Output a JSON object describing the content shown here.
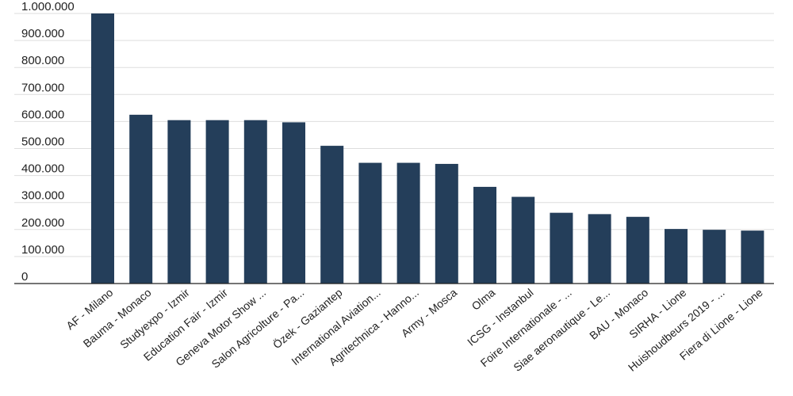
{
  "colors": {
    "bar": "#243e5a",
    "grid": "#dddddd",
    "text": "#222222"
  },
  "chart_data": {
    "type": "bar",
    "title": "",
    "xlabel": "",
    "ylabel": "",
    "ylim": [
      0,
      1000000
    ],
    "y_ticks": [
      {
        "value": 0,
        "label": "0"
      },
      {
        "value": 100000,
        "label": "100.000"
      },
      {
        "value": 200000,
        "label": "200.000"
      },
      {
        "value": 300000,
        "label": "300.000"
      },
      {
        "value": 400000,
        "label": "400.000"
      },
      {
        "value": 500000,
        "label": "500.000"
      },
      {
        "value": 600000,
        "label": "600.000"
      },
      {
        "value": 700000,
        "label": "700.000"
      },
      {
        "value": 800000,
        "label": "800.000"
      },
      {
        "value": 900000,
        "label": "900.000"
      },
      {
        "value": 1000000,
        "label": "1.000.000"
      }
    ],
    "grid": true,
    "legend": "none",
    "categories": [
      "AF - Milano",
      "Bauma - Monaco",
      "Studyexpo - Izmir",
      "Education Fair - Izmir",
      "Geneva Motor Show ...",
      "Salon Agricolture - Pa...",
      "Özek - Gaziantep",
      "International Aviation...",
      "Agritechnica - Hanno...",
      "Army - Mosca",
      "Olma",
      "ICSG - Instanbul",
      "Foire Internationale - ...",
      "Siae aeronautique - Le...",
      "BAU - Monaco",
      "SIRHA - Lione",
      "Huishoudbeurs 2019 - ...",
      "Fiera di Lione - Lione"
    ],
    "values": [
      1000000,
      625000,
      605000,
      605000,
      605000,
      597000,
      510000,
      447000,
      447000,
      443000,
      358000,
      321000,
      262000,
      257000,
      247000,
      202000,
      199000,
      196000
    ]
  }
}
